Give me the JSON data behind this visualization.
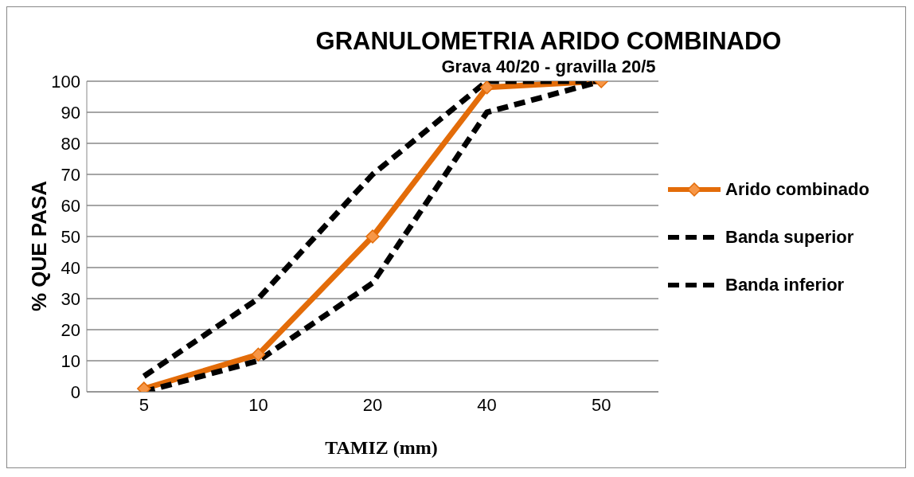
{
  "chart_data": {
    "type": "line",
    "title": "GRANULOMETRIA ARIDO COMBINADO",
    "subtitle": "Grava 40/20 - gravilla 20/5",
    "xlabel": "TAMIZ (mm)",
    "ylabel": "% QUE PASA",
    "categories": [
      "5",
      "10",
      "20",
      "40",
      "50"
    ],
    "ylim": [
      0,
      100
    ],
    "yticks": [
      0,
      10,
      20,
      30,
      40,
      50,
      60,
      70,
      80,
      90,
      100
    ],
    "grid": "y",
    "legend": "right",
    "series": [
      {
        "name": "Arido combinado",
        "color": "#e36c09",
        "values": [
          1,
          12,
          50,
          98,
          100
        ],
        "marker": "diamond",
        "line_style": "solid"
      },
      {
        "name": "Banda superior",
        "color": "#000000",
        "values": [
          5,
          30,
          70,
          100,
          100
        ],
        "marker": "none",
        "line_style": "dashed"
      },
      {
        "name": "Banda inferior",
        "color": "#000000",
        "values": [
          0,
          10,
          35,
          90,
          100
        ],
        "marker": "none",
        "line_style": "dashed"
      }
    ]
  }
}
